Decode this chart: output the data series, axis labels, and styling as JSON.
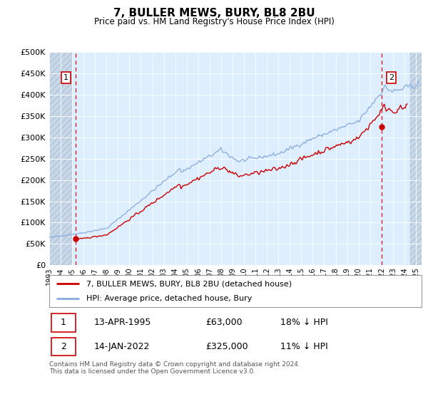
{
  "title": "7, BULLER MEWS, BURY, BL8 2BU",
  "subtitle": "Price paid vs. HM Land Registry's House Price Index (HPI)",
  "ylim": [
    0,
    500000
  ],
  "yticks": [
    0,
    50000,
    100000,
    150000,
    200000,
    250000,
    300000,
    350000,
    400000,
    450000,
    500000
  ],
  "xlim_start": 1993.0,
  "xlim_end": 2025.5,
  "sale1_x": 1995.28,
  "sale1_y": 63000,
  "sale2_x": 2022.04,
  "sale2_y": 325000,
  "hpi_at_sale1": 76829,
  "hpi_at_sale2": 365168,
  "sale_color": "#cc0000",
  "hpi_color": "#88aadd",
  "legend_label1": "7, BULLER MEWS, BURY, BL8 2BU (detached house)",
  "legend_label2": "HPI: Average price, detached house, Bury",
  "annotation1_date": "13-APR-1995",
  "annotation1_price": "£63,000",
  "annotation1_hpi": "18% ↓ HPI",
  "annotation2_date": "14-JAN-2022",
  "annotation2_price": "£325,000",
  "annotation2_hpi": "11% ↓ HPI",
  "footnote": "Contains HM Land Registry data © Crown copyright and database right 2024.\nThis data is licensed under the Open Government Licence v3.0.",
  "bg_color": "#ddeeff",
  "hatch_color": "#c8d8e8",
  "grid_color": "#ffffff"
}
